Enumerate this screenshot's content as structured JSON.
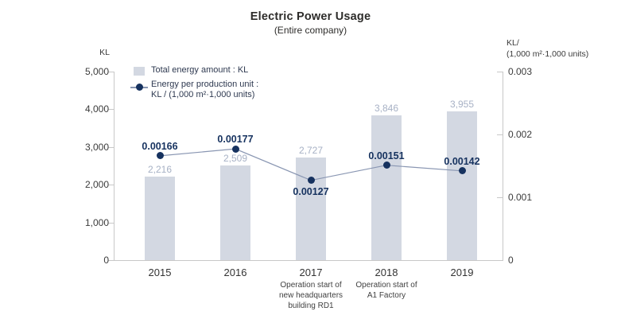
{
  "title": "Electric Power Usage",
  "subtitle": "(Entire company)",
  "legend": {
    "bar_label": "Total energy amount : KL",
    "line_label_1": "Energy per production unit :",
    "line_label_2": "KL / (1,000 m²·1,000 units)"
  },
  "left_axis": {
    "unit": "KL",
    "tick_values": [
      5000,
      4000,
      3000,
      2000,
      1000,
      0
    ],
    "tick_labels": [
      "5,000",
      "4,000",
      "3,000",
      "2,000",
      "1,000",
      "0"
    ],
    "max": 5000
  },
  "right_axis": {
    "unit_line1": "KL/",
    "unit_line2": "(1,000 m²·1,000 units)",
    "tick_values": [
      0.003,
      0.002,
      0.001,
      0
    ],
    "tick_labels": [
      "0.003",
      "0.002",
      "0.001",
      "0"
    ],
    "max": 0.003
  },
  "colors": {
    "bar": "#d3d8e2",
    "bar_label": "#a7b1c5",
    "line": "#8996b2",
    "dot": "#16325f",
    "point_label": "#16325f",
    "axis": "#c8c8c8"
  },
  "chart_data": {
    "type": "bar",
    "subtype": "bar+line dual axis",
    "categories": [
      "2015",
      "2016",
      "2017",
      "2018",
      "2019"
    ],
    "series": [
      {
        "name": "Total energy amount : KL",
        "type": "bar",
        "axis": "left",
        "values": [
          2216,
          2509,
          2727,
          3846,
          3955
        ],
        "labels": [
          "2,216",
          "2,509",
          "2,727",
          "3,846",
          "3,955"
        ]
      },
      {
        "name": "Energy per production unit : KL / (1,000 m²·1,000 units)",
        "type": "line",
        "axis": "right",
        "values": [
          0.00166,
          0.00177,
          0.00127,
          0.00151,
          0.00142
        ],
        "labels": [
          "0.00166",
          "0.00177",
          "0.00127",
          "0.00151",
          "0.00142"
        ],
        "label_positions": [
          "above",
          "above",
          "below",
          "above",
          "above"
        ]
      }
    ],
    "annotations": [
      {
        "category": "2017",
        "lines": [
          "Operation start of",
          "new headquarters",
          "building RD1"
        ]
      },
      {
        "category": "2018",
        "lines": [
          "Operation start of",
          "A1 Factory"
        ]
      }
    ],
    "left_ylim": [
      0,
      5000
    ],
    "right_ylim": [
      0,
      0.003
    ],
    "grid": false,
    "legend_position": "top-left-inside"
  }
}
